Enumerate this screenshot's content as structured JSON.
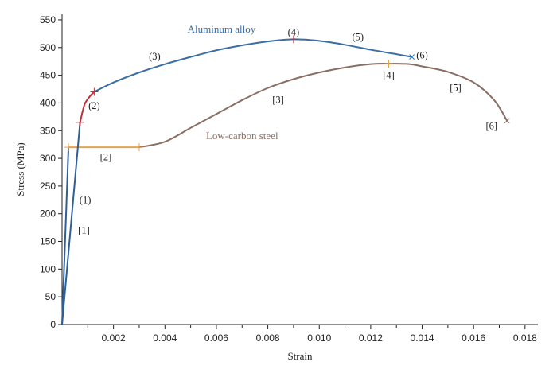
{
  "chart_data": {
    "type": "line",
    "title": "",
    "xlabel": "Strain",
    "ylabel": "Stress (MPa)",
    "xlim": [
      0,
      0.0185
    ],
    "ylim": [
      0,
      560
    ],
    "x_ticks": [
      "0.002",
      "0.004",
      "0.006",
      "0.008",
      "0.010",
      "0.012",
      "0.014",
      "0.016",
      "0.018"
    ],
    "x_tick_values": [
      0.002,
      0.004,
      0.006,
      0.008,
      0.01,
      0.012,
      0.014,
      0.016,
      0.018
    ],
    "y_ticks": [
      "0",
      "50",
      "100",
      "150",
      "200",
      "250",
      "300",
      "350",
      "400",
      "450",
      "500",
      "550"
    ],
    "y_tick_values": [
      0,
      50,
      100,
      150,
      200,
      250,
      300,
      350,
      400,
      450,
      500,
      550
    ],
    "grid": false,
    "colors": {
      "aluminum": "#3a6ea5",
      "aluminum_elastic": "#2f5f98",
      "aluminum_yield": "#c0303a",
      "steel": "#8a6e62",
      "steel_plateau": "#e8a24a",
      "marker": "#c0303a",
      "steel_marker": "#e8a24a"
    },
    "series": [
      {
        "name": "Aluminum alloy",
        "segments": [
          {
            "role": "elastic",
            "points": [
              [
                0,
                0
              ],
              [
                0.0007,
                365
              ]
            ]
          },
          {
            "role": "yield",
            "points": [
              [
                0.0007,
                365
              ],
              [
                0.0008,
                385
              ],
              [
                0.0009,
                400
              ],
              [
                0.0011,
                413
              ],
              [
                0.00125,
                420
              ]
            ]
          },
          {
            "role": "hardening",
            "points": [
              [
                0.00125,
                420
              ],
              [
                0.002,
                437
              ],
              [
                0.003,
                455
              ],
              [
                0.004,
                470
              ],
              [
                0.005,
                483
              ],
              [
                0.006,
                495
              ],
              [
                0.007,
                504
              ],
              [
                0.008,
                511
              ],
              [
                0.009,
                515
              ],
              [
                0.01,
                512
              ],
              [
                0.011,
                505
              ],
              [
                0.012,
                496
              ],
              [
                0.013,
                488
              ],
              [
                0.0136,
                483
              ]
            ]
          }
        ],
        "labels": [
          "(1)",
          "(2)",
          "(3)",
          "(4)",
          "(5)",
          "(6)"
        ],
        "label_anchors": [
          [
            0.0009,
            225
          ],
          [
            0.00125,
            395
          ],
          [
            0.0036,
            484
          ],
          [
            0.009,
            528
          ],
          [
            0.0115,
            519
          ],
          [
            0.014,
            486
          ]
        ],
        "cross_markers": [
          [
            0.0007,
            365
          ],
          [
            0.00125,
            420
          ],
          [
            0.009,
            515
          ]
        ],
        "end_marker": [
          0.0136,
          483
        ]
      },
      {
        "name": "Low-carbon steel",
        "segments": [
          {
            "role": "elastic",
            "points": [
              [
                0,
                0
              ],
              [
                0.00025,
                320
              ]
            ]
          },
          {
            "role": "yield-plateau",
            "points": [
              [
                0.00025,
                320
              ],
              [
                0.003,
                320
              ]
            ]
          },
          {
            "role": "hardening",
            "points": [
              [
                0.003,
                320
              ],
              [
                0.004,
                330
              ],
              [
                0.005,
                355
              ],
              [
                0.006,
                380
              ],
              [
                0.007,
                405
              ],
              [
                0.008,
                427
              ],
              [
                0.009,
                443
              ],
              [
                0.01,
                455
              ],
              [
                0.011,
                464
              ],
              [
                0.012,
                470
              ],
              [
                0.0127,
                471
              ],
              [
                0.0135,
                470
              ],
              [
                0.014,
                466
              ],
              [
                0.015,
                456
              ],
              [
                0.016,
                437
              ],
              [
                0.0168,
                405
              ],
              [
                0.0173,
                368
              ]
            ]
          }
        ],
        "labels": [
          "[1]",
          "[2]",
          "[3]",
          "[4]",
          "[5]",
          "[6]"
        ],
        "label_anchors": [
          [
            0.00085,
            170
          ],
          [
            0.0017,
            302
          ],
          [
            0.0084,
            406
          ],
          [
            0.0127,
            450
          ],
          [
            0.0153,
            427
          ],
          [
            0.0167,
            358
          ]
        ],
        "cross_markers": [
          [
            0.00025,
            320
          ],
          [
            0.003,
            320
          ],
          [
            0.0127,
            471
          ]
        ],
        "end_marker": [
          0.0173,
          368
        ]
      }
    ],
    "series_labels": [
      {
        "text": "Aluminum alloy",
        "x": 0.0062,
        "y": 533
      },
      {
        "text": "Low-carbon steel",
        "x": 0.007,
        "y": 340
      }
    ]
  }
}
